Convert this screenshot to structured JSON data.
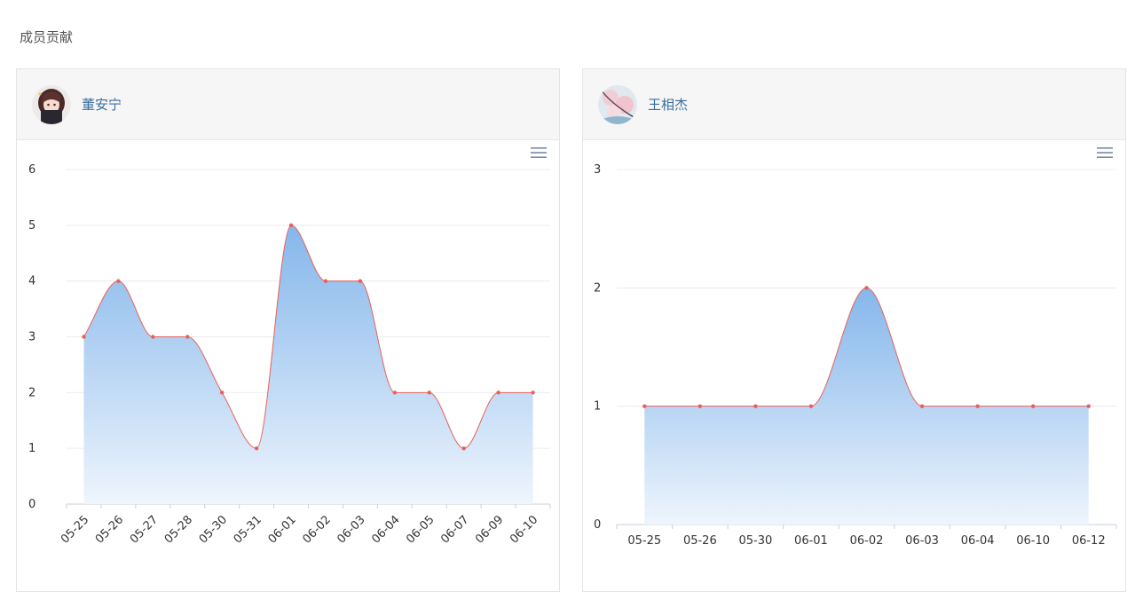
{
  "page": {
    "title": "成员贡献"
  },
  "members": [
    {
      "name": "董安宁"
    },
    {
      "name": "王相杰"
    }
  ],
  "colors": {
    "line": "#e8605a",
    "point": "#e8605a",
    "area_top": "#7fb3ea",
    "area_bottom": "#eef5fd",
    "grid": "#ececec",
    "axis": "#c6d0dc",
    "label": "#333333"
  },
  "icons": [
    "avatar-anime-girl-icon",
    "avatar-cherry-blossom-icon",
    "hamburger-menu-icon"
  ],
  "chart_data": [
    {
      "type": "area",
      "member": "董安宁",
      "categories": [
        "05-25",
        "05-26",
        "05-27",
        "05-28",
        "05-30",
        "05-31",
        "06-01",
        "06-02",
        "06-03",
        "06-04",
        "06-05",
        "06-07",
        "06-09",
        "06-10"
      ],
      "values": [
        3,
        4,
        3,
        3,
        2,
        1,
        5,
        4,
        4,
        2,
        2,
        1,
        2,
        2
      ],
      "ylim": [
        0,
        6
      ],
      "yticks": [
        0,
        1,
        2,
        3,
        4,
        5,
        6
      ],
      "smooth": true,
      "x_labels_rotated": true,
      "grid": true
    },
    {
      "type": "area",
      "member": "王相杰",
      "categories": [
        "05-25",
        "05-26",
        "05-30",
        "06-01",
        "06-02",
        "06-03",
        "06-04",
        "06-10",
        "06-12"
      ],
      "values": [
        1,
        1,
        1,
        1,
        2,
        1,
        1,
        1,
        1
      ],
      "ylim": [
        0,
        3
      ],
      "yticks": [
        0,
        1,
        2,
        3
      ],
      "smooth": true,
      "x_labels_rotated": false,
      "grid": true
    }
  ]
}
